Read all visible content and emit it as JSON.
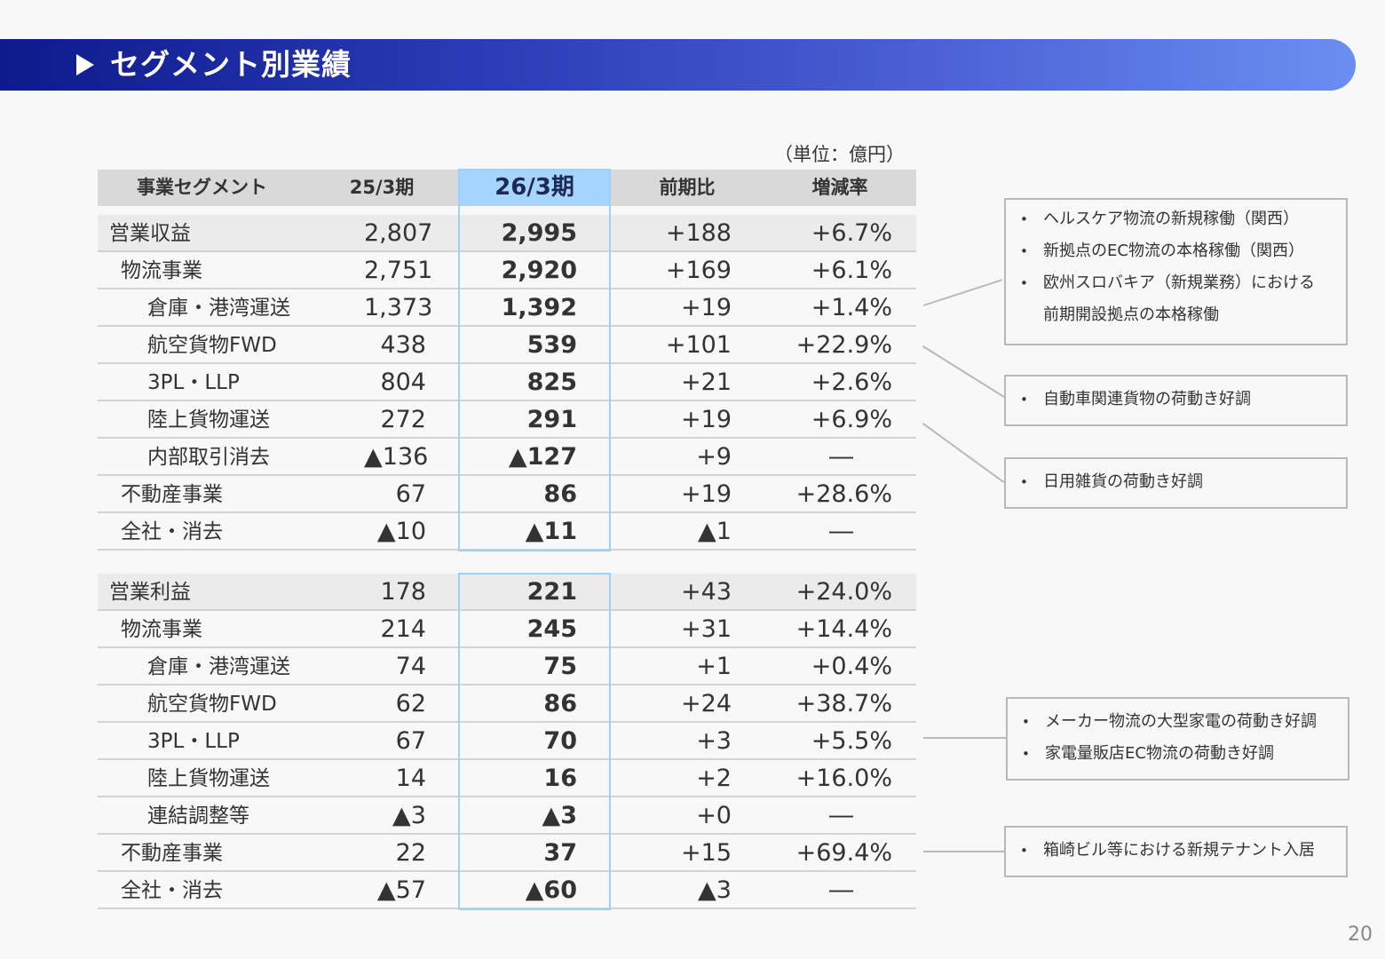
{
  "title": "セグメント別業績",
  "unit": "（単位：億円）",
  "headers": {
    "segment": "事業セグメント",
    "prev": "25/3期",
    "cur": "26/3期",
    "diff": "前期比",
    "rate": "増減率"
  },
  "revenue": [
    {
      "label": "営業収益",
      "prev": "2,807",
      "cur": "2,995",
      "diff": "+188",
      "rate": "+6.7%"
    },
    {
      "label": "物流事業",
      "prev": "2,751",
      "cur": "2,920",
      "diff": "+169",
      "rate": "+6.1%"
    },
    {
      "label": "倉庫・港湾運送",
      "prev": "1,373",
      "cur": "1,392",
      "diff": "+19",
      "rate": "+1.4%"
    },
    {
      "label": "航空貨物FWD",
      "prev": "438",
      "cur": "539",
      "diff": "+101",
      "rate": "+22.9%"
    },
    {
      "label": "3PL・LLP",
      "prev": "804",
      "cur": "825",
      "diff": "+21",
      "rate": "+2.6%"
    },
    {
      "label": "陸上貨物運送",
      "prev": "272",
      "cur": "291",
      "diff": "+19",
      "rate": "+6.9%"
    },
    {
      "label": "内部取引消去",
      "prev": "▲136",
      "cur": "▲127",
      "diff": "+9",
      "rate": "―"
    },
    {
      "label": "不動産事業",
      "prev": "67",
      "cur": "86",
      "diff": "+19",
      "rate": "+28.6%"
    },
    {
      "label": "全社・消去",
      "prev": "▲10",
      "cur": "▲11",
      "diff": "▲1",
      "rate": "―"
    }
  ],
  "profit": [
    {
      "label": "営業利益",
      "prev": "178",
      "cur": "221",
      "diff": "+43",
      "rate": "+24.0%"
    },
    {
      "label": "物流事業",
      "prev": "214",
      "cur": "245",
      "diff": "+31",
      "rate": "+14.4%"
    },
    {
      "label": "倉庫・港湾運送",
      "prev": "74",
      "cur": "75",
      "diff": "+1",
      "rate": "+0.4%"
    },
    {
      "label": "航空貨物FWD",
      "prev": "62",
      "cur": "86",
      "diff": "+24",
      "rate": "+38.7%"
    },
    {
      "label": "3PL・LLP",
      "prev": "67",
      "cur": "70",
      "diff": "+3",
      "rate": "+5.5%"
    },
    {
      "label": "陸上貨物運送",
      "prev": "14",
      "cur": "16",
      "diff": "+2",
      "rate": "+16.0%"
    },
    {
      "label": "連結調整等",
      "prev": "▲3",
      "cur": "▲3",
      "diff": "+0",
      "rate": "―"
    },
    {
      "label": "不動産事業",
      "prev": "22",
      "cur": "37",
      "diff": "+15",
      "rate": "+69.4%"
    },
    {
      "label": "全社・消去",
      "prev": "▲57",
      "cur": "▲60",
      "diff": "▲3",
      "rate": "―"
    }
  ],
  "notes": {
    "warehouse": [
      "ヘルスケア物流の新規稼働（関西）",
      "新拠点のEC物流の本格稼働（関西）",
      "欧州スロバキア（新規業務）における",
      "前期開設拠点の本格稼働"
    ],
    "air": [
      "自動車関連貨物の荷動き好調"
    ],
    "tpl": [
      "日用雑貨の荷動き好調"
    ],
    "tpl_profit": [
      "メーカー物流の大型家電の荷動き好調",
      "家電量販店EC物流の荷動き好調"
    ],
    "realestate": [
      "箱崎ビル等における新規テナント入居"
    ]
  },
  "page_number": "20"
}
